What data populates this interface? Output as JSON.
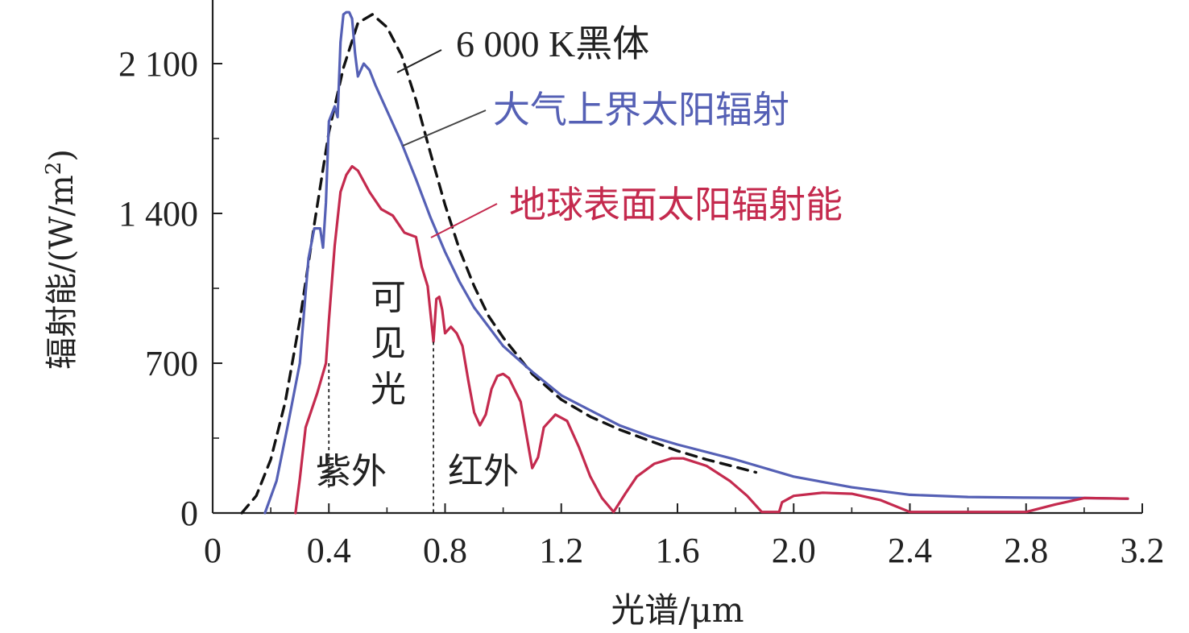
{
  "chart_data": {
    "type": "line",
    "xlabel": "光谱/μm",
    "ylabel_main": "辐射能/(W/m",
    "ylabel_sup": "2",
    "ylabel_close": ")",
    "xlim": [
      0,
      3.2
    ],
    "ylim": [
      0,
      2100
    ],
    "x_ticks": [
      0,
      0.4,
      0.8,
      1.2,
      1.6,
      2.0,
      2.4,
      2.8,
      3.2
    ],
    "x_tick_labels": [
      "0",
      "0.4",
      "0.8",
      "1.2",
      "1.6",
      "2.0",
      "2.4",
      "2.8",
      "3.2"
    ],
    "y_major_ticks": [
      0,
      700,
      1400,
      2100
    ],
    "y_tick_labels": [
      "0",
      "700",
      "1 400",
      "2 100"
    ],
    "y_minor_ticks": [
      350,
      1050,
      1750
    ],
    "grid": false,
    "legend": "none",
    "series": [
      {
        "name": "6 000 K黑体",
        "color": "#111111",
        "dash": true,
        "points": [
          [
            0.1,
            0
          ],
          [
            0.15,
            80
          ],
          [
            0.2,
            250
          ],
          [
            0.25,
            520
          ],
          [
            0.3,
            900
          ],
          [
            0.35,
            1350
          ],
          [
            0.4,
            1780
          ],
          [
            0.45,
            2080
          ],
          [
            0.5,
            2290
          ],
          [
            0.55,
            2330
          ],
          [
            0.6,
            2270
          ],
          [
            0.65,
            2140
          ],
          [
            0.7,
            1930
          ],
          [
            0.75,
            1680
          ],
          [
            0.8,
            1440
          ],
          [
            0.85,
            1230
          ],
          [
            0.9,
            1060
          ],
          [
            0.95,
            920
          ],
          [
            1.0,
            820
          ],
          [
            1.1,
            650
          ],
          [
            1.2,
            530
          ],
          [
            1.3,
            450
          ],
          [
            1.4,
            390
          ],
          [
            1.5,
            340
          ],
          [
            1.6,
            290
          ],
          [
            1.7,
            250
          ],
          [
            1.8,
            215
          ],
          [
            1.87,
            190
          ]
        ]
      },
      {
        "name": "大气上界太阳辐射",
        "color": "#5560b5",
        "dash": false,
        "points": [
          [
            0.18,
            0
          ],
          [
            0.22,
            150
          ],
          [
            0.26,
            420
          ],
          [
            0.3,
            700
          ],
          [
            0.32,
            1030
          ],
          [
            0.33,
            1190
          ],
          [
            0.34,
            1260
          ],
          [
            0.35,
            1330
          ],
          [
            0.37,
            1330
          ],
          [
            0.38,
            1240
          ],
          [
            0.39,
            1450
          ],
          [
            0.4,
            1830
          ],
          [
            0.42,
            1900
          ],
          [
            0.43,
            1850
          ],
          [
            0.44,
            2200
          ],
          [
            0.45,
            2330
          ],
          [
            0.46,
            2340
          ],
          [
            0.47,
            2340
          ],
          [
            0.48,
            2310
          ],
          [
            0.49,
            2150
          ],
          [
            0.5,
            2040
          ],
          [
            0.52,
            2100
          ],
          [
            0.54,
            2070
          ],
          [
            0.56,
            2000
          ],
          [
            0.6,
            1880
          ],
          [
            0.65,
            1730
          ],
          [
            0.7,
            1560
          ],
          [
            0.75,
            1380
          ],
          [
            0.8,
            1220
          ],
          [
            0.85,
            1080
          ],
          [
            0.9,
            960
          ],
          [
            1.0,
            780
          ],
          [
            1.1,
            660
          ],
          [
            1.2,
            550
          ],
          [
            1.3,
            480
          ],
          [
            1.4,
            410
          ],
          [
            1.5,
            360
          ],
          [
            1.6,
            320
          ],
          [
            1.8,
            250
          ],
          [
            2.0,
            170
          ],
          [
            2.2,
            120
          ],
          [
            2.4,
            85
          ],
          [
            2.6,
            75
          ],
          [
            2.8,
            72
          ],
          [
            3.0,
            70
          ],
          [
            3.15,
            67
          ]
        ]
      },
      {
        "name": "地球表面太阳辐射能",
        "color": "#c42a4e",
        "dash": false,
        "points": [
          [
            0.285,
            0
          ],
          [
            0.3,
            160
          ],
          [
            0.32,
            400
          ],
          [
            0.36,
            560
          ],
          [
            0.39,
            700
          ],
          [
            0.4,
            900
          ],
          [
            0.42,
            1250
          ],
          [
            0.44,
            1500
          ],
          [
            0.46,
            1580
          ],
          [
            0.48,
            1620
          ],
          [
            0.5,
            1600
          ],
          [
            0.54,
            1500
          ],
          [
            0.58,
            1420
          ],
          [
            0.62,
            1390
          ],
          [
            0.66,
            1310
          ],
          [
            0.68,
            1300
          ],
          [
            0.7,
            1290
          ],
          [
            0.72,
            1150
          ],
          [
            0.74,
            1060
          ],
          [
            0.76,
            800
          ],
          [
            0.77,
            1000
          ],
          [
            0.78,
            1010
          ],
          [
            0.79,
            950
          ],
          [
            0.8,
            840
          ],
          [
            0.82,
            870
          ],
          [
            0.84,
            840
          ],
          [
            0.86,
            780
          ],
          [
            0.88,
            620
          ],
          [
            0.9,
            470
          ],
          [
            0.92,
            410
          ],
          [
            0.94,
            460
          ],
          [
            0.96,
            580
          ],
          [
            0.98,
            640
          ],
          [
            1.0,
            650
          ],
          [
            1.02,
            630
          ],
          [
            1.06,
            520
          ],
          [
            1.1,
            210
          ],
          [
            1.12,
            260
          ],
          [
            1.14,
            400
          ],
          [
            1.18,
            460
          ],
          [
            1.22,
            430
          ],
          [
            1.26,
            310
          ],
          [
            1.3,
            170
          ],
          [
            1.34,
            70
          ],
          [
            1.38,
            5
          ],
          [
            1.42,
            90
          ],
          [
            1.46,
            170
          ],
          [
            1.52,
            230
          ],
          [
            1.58,
            255
          ],
          [
            1.62,
            255
          ],
          [
            1.7,
            220
          ],
          [
            1.78,
            150
          ],
          [
            1.84,
            80
          ],
          [
            1.89,
            5
          ],
          [
            1.95,
            5
          ],
          [
            1.96,
            50
          ],
          [
            2.0,
            80
          ],
          [
            2.1,
            95
          ],
          [
            2.2,
            90
          ],
          [
            2.3,
            60
          ],
          [
            2.4,
            5
          ],
          [
            2.8,
            5
          ],
          [
            2.9,
            40
          ],
          [
            3.0,
            70
          ],
          [
            3.15,
            67
          ]
        ]
      }
    ],
    "reference_lines_x": [
      0.4,
      0.76
    ],
    "annotations": {
      "blackbody_label": "6 000 K黑体",
      "toa_label": "大气上界太阳辐射",
      "surface_label": "地球表面太阳辐射能",
      "visible_label": [
        "可",
        "见",
        "光"
      ],
      "uv_label": "紫外",
      "ir_label": "红外"
    }
  }
}
